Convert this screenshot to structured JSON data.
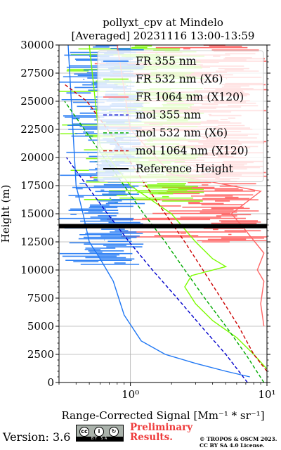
{
  "chart_data": {
    "type": "line",
    "title": "pollyxt_cpv at Mindelo",
    "subtitle": "[Averaged] 20231116 13:00-13:59",
    "xlabel": "Range-Corrected Signal [Mm⁻¹ * sr⁻¹]",
    "ylabel": "Height (m)",
    "xscale": "log",
    "xlim": [
      0.3,
      10
    ],
    "ylim": [
      0,
      30000
    ],
    "x_ticks": [
      "10⁰",
      "10¹"
    ],
    "y_ticks": [
      "0",
      "2500",
      "5000",
      "7500",
      "10000",
      "12500",
      "15000",
      "17500",
      "20000",
      "22500",
      "25000",
      "27500",
      "30000"
    ],
    "grid": true,
    "legend_position": "top-right",
    "reference_height": [
      13700,
      14100
    ],
    "series": [
      {
        "name": "FR 355 nm",
        "color": "#1f77f4",
        "style": "solid",
        "x": [
          7.5,
          5.0,
          3.0,
          1.8,
          1.2,
          0.9,
          0.75,
          0.6,
          0.5,
          0.45,
          0.4,
          0.35
        ],
        "y": [
          500,
          1000,
          1700,
          2500,
          3700,
          6000,
          9000,
          11000,
          12500,
          15000,
          17500,
          30000
        ]
      },
      {
        "name": "FR 532 nm (X6)",
        "color": "#7cfc00",
        "style": "solid",
        "x": [
          10.0,
          8.0,
          6.0,
          4.0,
          3.0,
          2.5,
          2.8,
          5.0,
          4.0,
          3.0,
          2.0,
          1.0,
          0.6,
          0.5
        ],
        "y": [
          1200,
          2500,
          4000,
          5500,
          7000,
          8500,
          9500,
          10300,
          11000,
          12500,
          15000,
          17500,
          21000,
          30000
        ]
      },
      {
        "name": "FR 1064 nm (X120)",
        "color": "#ff6666",
        "style": "solid",
        "x": [
          9.5,
          9.0,
          9.5,
          8.5,
          9.5,
          7.0,
          5.5,
          9.0,
          2.0,
          1.0,
          0.8
        ],
        "y": [
          5000,
          7000,
          9000,
          10000,
          11500,
          13500,
          15000,
          17000,
          18500,
          22500,
          30000
        ]
      },
      {
        "name": "mol 355 nm",
        "color": "#0000cc",
        "style": "dashed",
        "x": [
          7.2,
          5.0,
          3.3,
          2.2,
          1.45,
          0.98,
          0.68,
          0.48,
          0.34
        ],
        "y": [
          0,
          2500,
          5000,
          7500,
          10000,
          12500,
          15000,
          17500,
          20000
        ]
      },
      {
        "name": "mol 532 nm (X6)",
        "color": "#00aa00",
        "style": "dashed",
        "x": [
          9.5,
          7.0,
          5.0,
          3.5,
          2.5,
          1.8,
          1.25,
          0.9,
          0.64,
          0.46,
          0.33
        ],
        "y": [
          0,
          2500,
          5000,
          7500,
          10000,
          12500,
          15000,
          17500,
          20000,
          22500,
          25000
        ]
      },
      {
        "name": "mol 1064 nm (X120)",
        "color": "#cc0000",
        "style": "dashed",
        "x": [
          10.0,
          8.0,
          6.2,
          4.6,
          3.4,
          2.5,
          1.8,
          1.3,
          0.95,
          0.68,
          0.48,
          0.33
        ],
        "y": [
          1000,
          2500,
          5000,
          7500,
          10000,
          12500,
          15000,
          17500,
          20000,
          22500,
          25000,
          26500
        ]
      },
      {
        "name": "Reference Height",
        "color": "#000000",
        "style": "solid",
        "x": [
          0.3,
          10
        ],
        "y": [
          13900,
          13900
        ]
      }
    ]
  },
  "footer": {
    "version": "Version: 3.6",
    "license_badge": "BY SA",
    "preliminary_line1": "Preliminary",
    "preliminary_line2": "Results.",
    "copyright_line1": "© TROPOS & OSCM 2023.",
    "copyright_line2": "CC BY SA 4.0 License."
  }
}
